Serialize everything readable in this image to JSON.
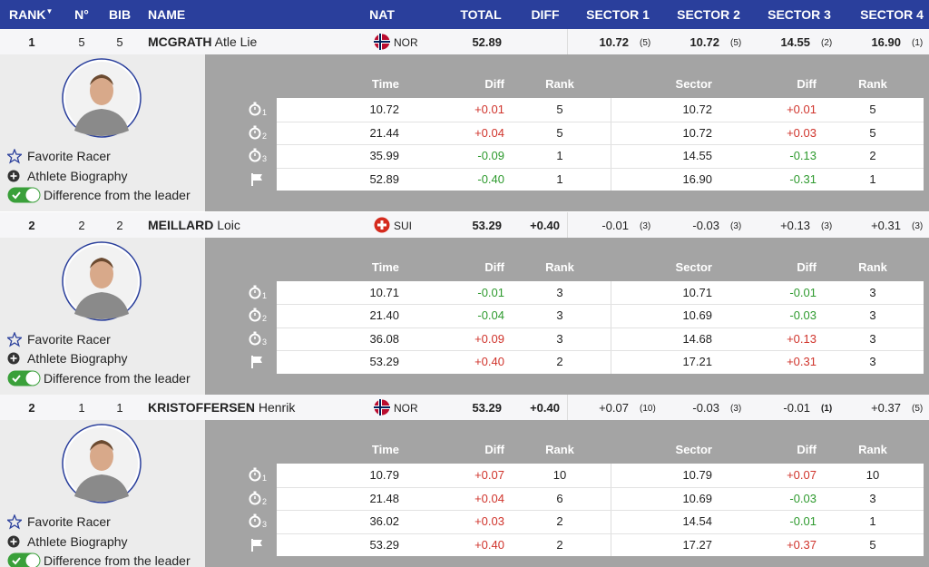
{
  "header": {
    "columns": [
      "RANK",
      "N°",
      "BIB",
      "NAME",
      "NAT",
      "TOTAL",
      "DIFF",
      "SECTOR 1",
      "SECTOR 2",
      "SECTOR 3",
      "SECTOR 4"
    ]
  },
  "detail_columns": [
    "Time",
    "Diff",
    "Rank",
    "Sector",
    "Diff",
    "Rank"
  ],
  "actions": [
    "Favorite Racer",
    "Athlete Biography",
    "Difference from the leader"
  ],
  "racers": [
    {
      "rank": "1",
      "no": "5",
      "bib": "5",
      "last_name": "MCGRATH",
      "first_name": "Atle Lie",
      "nat": "NOR",
      "total": "52.89",
      "sectors": [
        {
          "value": "10.72",
          "rank": "(5)"
        },
        {
          "value": "10.72",
          "rank": "(5)"
        },
        {
          "value": "14.55",
          "rank": "(2)"
        },
        {
          "value": "16.90",
          "rank": "(1)"
        }
      ],
      "splits": [
        {
          "index": "1",
          "time": "10.72",
          "diff": "+0.01",
          "rank": "5",
          "sector": "10.72",
          "sector_diff": "+0.01",
          "sector_rank": "5"
        },
        {
          "index": "2",
          "time": "21.44",
          "diff": "+0.04",
          "rank": "5",
          "sector": "10.72",
          "sector_diff": "+0.03",
          "sector_rank": "5"
        },
        {
          "index": "3",
          "time": "35.99",
          "diff": "-0.09",
          "rank": "1",
          "sector": "14.55",
          "sector_diff": "-0.13",
          "sector_rank": "2"
        },
        {
          "time": "52.89",
          "diff": "-0.40",
          "rank": "1",
          "sector": "16.90",
          "sector_diff": "-0.31",
          "sector_rank": "1"
        }
      ]
    },
    {
      "rank": "2",
      "no": "2",
      "bib": "2",
      "last_name": "MEILLARD",
      "first_name": "Loic",
      "nat": "SUI",
      "total": "53.29",
      "diff": "+0.40",
      "sectors": [
        {
          "value": "-0.01",
          "rank": "(3)"
        },
        {
          "value": "-0.03",
          "rank": "(3)"
        },
        {
          "value": "+0.13",
          "rank": "(3)"
        },
        {
          "value": "+0.31",
          "rank": "(3)"
        }
      ],
      "splits": [
        {
          "index": "1",
          "time": "10.71",
          "diff": "-0.01",
          "rank": "3",
          "sector": "10.71",
          "sector_diff": "-0.01",
          "sector_rank": "3"
        },
        {
          "index": "2",
          "time": "21.40",
          "diff": "-0.04",
          "rank": "3",
          "sector": "10.69",
          "sector_diff": "-0.03",
          "sector_rank": "3"
        },
        {
          "index": "3",
          "time": "36.08",
          "diff": "+0.09",
          "rank": "3",
          "sector": "14.68",
          "sector_diff": "+0.13",
          "sector_rank": "3"
        },
        {
          "time": "53.29",
          "diff": "+0.40",
          "rank": "2",
          "sector": "17.21",
          "sector_diff": "+0.31",
          "sector_rank": "3"
        }
      ]
    },
    {
      "rank": "2",
      "no": "1",
      "bib": "1",
      "last_name": "KRISTOFFERSEN",
      "first_name": "Henrik",
      "nat": "NOR",
      "total": "53.29",
      "diff": "+0.40",
      "sectors": [
        {
          "value": "+0.07",
          "rank": "(10)"
        },
        {
          "value": "-0.03",
          "rank": "(3)"
        },
        {
          "value": "-0.01",
          "rank": "(1)"
        },
        {
          "value": "+0.37",
          "rank": "(5)"
        }
      ],
      "splits": [
        {
          "index": "1",
          "time": "10.79",
          "diff": "+0.07",
          "rank": "10",
          "sector": "10.79",
          "sector_diff": "+0.07",
          "sector_rank": "10"
        },
        {
          "index": "2",
          "time": "21.48",
          "diff": "+0.04",
          "rank": "6",
          "sector": "10.69",
          "sector_diff": "-0.03",
          "sector_rank": "3"
        },
        {
          "index": "3",
          "time": "36.02",
          "diff": "+0.03",
          "rank": "2",
          "sector": "14.54",
          "sector_diff": "-0.01",
          "sector_rank": "1"
        },
        {
          "time": "53.29",
          "diff": "+0.40",
          "rank": "2",
          "sector": "17.27",
          "sector_diff": "+0.37",
          "sector_rank": "5"
        }
      ]
    }
  ]
}
